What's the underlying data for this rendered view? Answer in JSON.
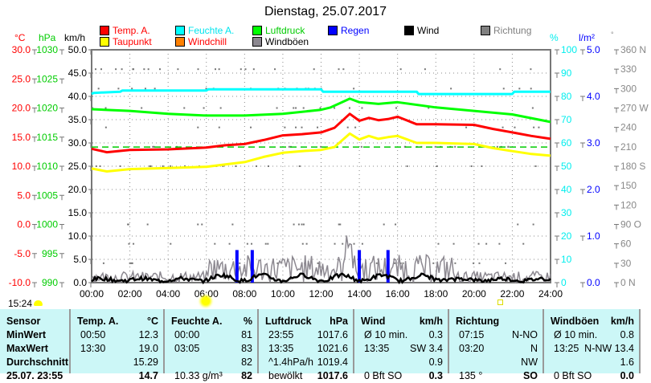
{
  "title": "Dienstag, 25.07.2017",
  "legend": [
    {
      "label": "Temp. A.",
      "color": "#ff0000",
      "text": "#ff0000"
    },
    {
      "label": "Feuchte A.",
      "color": "#00ffff",
      "text": "#00e5ee"
    },
    {
      "label": "Luftdruck",
      "color": "#00ff00",
      "text": "#00cc00"
    },
    {
      "label": "Regen",
      "color": "#0000ff",
      "text": "#0000ff"
    },
    {
      "label": "Wind",
      "color": "#000000",
      "text": "#000000"
    },
    {
      "label": "Richtung",
      "color": "#808080",
      "text": "#808080"
    },
    {
      "label": "Taupunkt",
      "color": "#ffff00",
      "text": "#ff0000"
    },
    {
      "label": "Windchill",
      "color": "#ff8000",
      "text": "#ff0000"
    },
    {
      "label": "Windböen",
      "color": "#8c8890",
      "text": "#000000"
    }
  ],
  "units": {
    "temp": "°C",
    "pressure": "hPa",
    "wind": "km/h",
    "humidity": "%",
    "rain": "l/m²",
    "direction": "°"
  },
  "time_now": "15:24",
  "chart_data": {
    "type": "line",
    "title": "Dienstag, 25.07.2017",
    "x_ticks": [
      "00:00",
      "02:00",
      "04:00",
      "06:00",
      "08:00",
      "10:00",
      "12:00",
      "14:00",
      "16:00",
      "18:00",
      "20:00",
      "22:00",
      "24:00"
    ],
    "axes": {
      "temp": {
        "ticks": [
          "30.0",
          "25.0",
          "20.0",
          "15.0",
          "10.0",
          "5.0",
          "0.0",
          "-5.0",
          "-10.0"
        ],
        "range": [
          -10,
          30
        ]
      },
      "pressure": {
        "ticks": [
          "1030",
          "1025",
          "1020",
          "1015",
          "1010",
          "1005",
          "1000",
          "995",
          "990"
        ],
        "range": [
          990,
          1030
        ]
      },
      "wind": {
        "ticks": [
          "50.0",
          "45.0",
          "40.0",
          "35.0",
          "30.0",
          "25.0",
          "20.0",
          "15.0",
          "10.0",
          "5.0",
          "0.0"
        ],
        "range": [
          0,
          50
        ]
      },
      "humidity": {
        "ticks": [
          "100",
          "90",
          "80",
          "70",
          "60",
          "50",
          "40",
          "30",
          "20",
          "10",
          "0"
        ],
        "range": [
          0,
          100
        ]
      },
      "rain": {
        "ticks": [
          "5.0",
          "4.0",
          "3.0",
          "2.0",
          "1.0",
          "0.0"
        ],
        "range": [
          0,
          5
        ]
      },
      "direction": {
        "ticks": [
          "360 N",
          "330",
          "300",
          "270 W",
          "240",
          "210",
          "180 S",
          "150",
          "120",
          "90 O",
          "60",
          "30",
          "0 N"
        ],
        "range": [
          0,
          360
        ]
      }
    },
    "series": [
      {
        "name": "Temp. A.",
        "axis": "temp",
        "color": "#ff0000",
        "x": [
          0,
          0.8,
          2,
          4,
          6,
          7,
          8,
          9,
          10,
          11,
          12,
          12.7,
          13.5,
          14,
          14.5,
          15,
          15.5,
          16,
          17,
          18,
          20,
          21,
          22,
          23,
          24
        ],
        "y": [
          13.0,
          12.4,
          12.8,
          12.9,
          13.2,
          13.6,
          13.8,
          14.5,
          15.3,
          15.5,
          15.8,
          16.6,
          19.0,
          17.8,
          18.3,
          17.9,
          18.1,
          18.5,
          17.2,
          17.2,
          17.1,
          16.4,
          15.8,
          15.2,
          14.7
        ]
      },
      {
        "name": "Taupunkt",
        "axis": "temp",
        "color": "#ffff00",
        "x": [
          0,
          0.8,
          2,
          4,
          6,
          7,
          8,
          9,
          10,
          11,
          12,
          12.7,
          13.5,
          14,
          14.5,
          15,
          15.5,
          16,
          17,
          18,
          20,
          21,
          22,
          23,
          24
        ],
        "y": [
          9.6,
          9.1,
          9.5,
          9.7,
          9.9,
          10.3,
          10.7,
          11.6,
          12.3,
          12.6,
          12.8,
          13.3,
          15.6,
          14.6,
          15.2,
          14.7,
          15.0,
          15.2,
          14.0,
          14.0,
          13.8,
          13.1,
          12.6,
          12.1,
          11.8
        ]
      },
      {
        "name": "Feuchte A.",
        "axis": "humidity",
        "color": "#00ffff",
        "x": [
          0,
          0.1,
          1.5,
          1.6,
          6,
          6.1,
          12,
          12.1,
          17,
          17.1,
          22,
          22.1,
          24
        ],
        "y": [
          81,
          81.5,
          82,
          82.5,
          82.5,
          83,
          83,
          82,
          82,
          81,
          81,
          82,
          82
        ]
      },
      {
        "name": "Luftdruck",
        "axis": "pressure",
        "color": "#00ff00",
        "x": [
          0,
          2,
          4,
          6,
          8,
          10,
          12,
          12.5,
          13.5,
          14,
          15,
          16,
          18,
          20,
          22,
          24
        ],
        "y": [
          1019.8,
          1019.5,
          1019.0,
          1018.7,
          1018.7,
          1019.0,
          1019.7,
          1020.1,
          1021.6,
          1021.0,
          1020.7,
          1021.0,
          1020.1,
          1019.5,
          1018.9,
          1017.6
        ]
      },
      {
        "name": "Wind",
        "axis": "wind",
        "color": "#000000",
        "summary": {
          "min_avg10": 0.3,
          "max": 3.4,
          "avg": 0.9
        }
      },
      {
        "name": "Windböen",
        "axis": "wind",
        "color": "#8c8890",
        "summary": {
          "max": 13.4,
          "avg": 1.6
        }
      },
      {
        "name": "Regen",
        "axis": "rain",
        "color": "#0000ff",
        "x": [
          7.6,
          8.4,
          14.0,
          15.5
        ],
        "y": [
          0.7,
          0.7,
          0.7,
          0.7
        ]
      }
    ],
    "reference_line": {
      "axis": "temp",
      "value": 13.3,
      "color": "#00cc00",
      "style": "dashed"
    }
  },
  "table": {
    "headers": [
      {
        "name": "Sensor",
        "unit": ""
      },
      {
        "name": "Temp. A.",
        "unit": "°C"
      },
      {
        "name": "Feuchte A.",
        "unit": "%"
      },
      {
        "name": "Luftdruck",
        "unit": "hPa"
      },
      {
        "name": "Wind",
        "unit": "km/h"
      },
      {
        "name": "Richtung",
        "unit": ""
      },
      {
        "name": "Windböen",
        "unit": "km/h"
      }
    ],
    "row_labels": [
      "MinWert",
      "MaxWert",
      "Durchschnitt",
      "25.07. 23:55"
    ],
    "cells": [
      [
        [
          "00:50",
          "12.3"
        ],
        [
          "13:30",
          "19.0"
        ],
        [
          "",
          "15.29"
        ],
        [
          "",
          "14.7"
        ]
      ],
      [
        [
          "00:00",
          "81"
        ],
        [
          "03:05",
          "83"
        ],
        [
          "",
          "82"
        ],
        [
          "10.33 g/m³",
          "82"
        ]
      ],
      [
        [
          "23:55",
          "1017.6"
        ],
        [
          "13:35",
          "1021.6"
        ],
        [
          "^1.4hPa/h",
          "1019.4"
        ],
        [
          "bewölkt",
          "1017.6"
        ]
      ],
      [
        [
          "Ø 10 min.",
          "0.3"
        ],
        [
          "13:35",
          "SW 3.4"
        ],
        [
          "",
          "0.9"
        ],
        [
          "0 Bft SO",
          "0.3"
        ]
      ],
      [
        [
          "07:15",
          "N-NO"
        ],
        [
          "03:20",
          "N"
        ],
        [
          "",
          "NW"
        ],
        [
          "135 °",
          "SO"
        ]
      ],
      [
        [
          "Ø 10 min.",
          "0.8"
        ],
        [
          "13:25",
          "N-NW 13.4"
        ],
        [
          "",
          "1.6"
        ],
        [
          "0 Bft SO",
          "0.0"
        ]
      ]
    ]
  }
}
